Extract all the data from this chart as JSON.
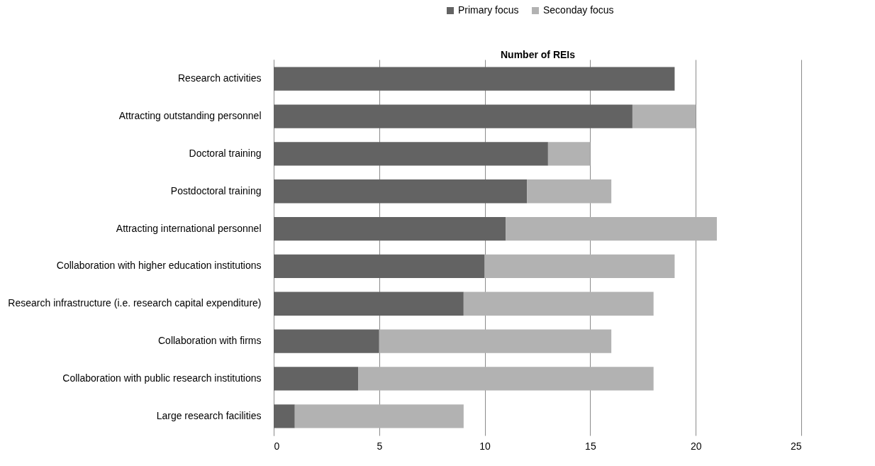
{
  "chart_data": {
    "type": "bar",
    "orientation": "horizontal",
    "stacked": true,
    "xlabel": "Number of REIs",
    "categories": [
      "Research activities",
      "Attracting outstanding personnel",
      "Doctoral training",
      "Postdoctoral training",
      "Attracting international personnel",
      "Collaboration with higher education institutions",
      "Research infrastructure (i.e. research capital expenditure)",
      "Collaboration with firms",
      "Collaboration with public research institutions",
      "Large research facilities"
    ],
    "series": [
      {
        "name": "Primary focus",
        "color": "#636363",
        "values": [
          19,
          17,
          13,
          12,
          11,
          10,
          9,
          5,
          4,
          1
        ]
      },
      {
        "name": "Seconday focus",
        "color": "#b2b2b2",
        "values": [
          0,
          3,
          2,
          4,
          10,
          9,
          9,
          11,
          14,
          8
        ]
      }
    ],
    "xlim": [
      0,
      25
    ],
    "xticks": [
      0,
      5,
      10,
      15,
      20,
      25
    ],
    "grid": "x",
    "legend": "top"
  }
}
